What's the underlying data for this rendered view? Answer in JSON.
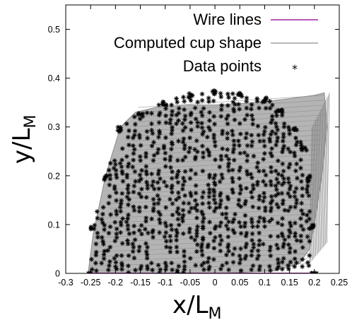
{
  "chart_data": {
    "type": "scatter",
    "xlabel": "x/L",
    "xlabel_sub": "M",
    "ylabel": "y/L",
    "ylabel_sub": "M",
    "xlim": [
      -0.3,
      0.25
    ],
    "ylim": [
      0,
      0.55
    ],
    "xticks": [
      "-0.3",
      "-0.25",
      "-0.2",
      "-0.15",
      "-0.1",
      "-0.05",
      "0",
      "0.05",
      "0.1",
      "0.15",
      "0.2",
      "0.25"
    ],
    "xtick_values": [
      -0.3,
      -0.25,
      -0.2,
      -0.15,
      -0.1,
      -0.05,
      0,
      0.05,
      0.1,
      0.15,
      0.2,
      0.25
    ],
    "yticks": [
      "0",
      "0.1",
      "0.2",
      "0.3",
      "0.4",
      "0.5"
    ],
    "ytick_values": [
      0,
      0.1,
      0.2,
      0.3,
      0.4,
      0.5
    ],
    "grid": false,
    "legend_position": "top-right",
    "series": [
      {
        "name": "Wire lines",
        "kind": "line",
        "color": "#a020a0",
        "x": [
          -0.25,
          0.19
        ],
        "y": [
          0,
          0
        ]
      },
      {
        "name": "Computed cup shape",
        "kind": "surface",
        "color": "#a0a0a0",
        "outline_x": [
          -0.255,
          -0.245,
          -0.22,
          -0.19,
          -0.16,
          -0.12,
          -0.05,
          0.0,
          0.05,
          0.1,
          0.15,
          0.2,
          0.22,
          0.225,
          0.215,
          0.2,
          0.19,
          0.17,
          0.12,
          0.0,
          -0.12,
          -0.2,
          -0.255
        ],
        "outline_y": [
          0.0,
          0.08,
          0.2,
          0.3,
          0.33,
          0.34,
          0.345,
          0.345,
          0.348,
          0.352,
          0.358,
          0.365,
          0.37,
          0.3,
          0.2,
          0.1,
          0.05,
          0.02,
          0.005,
          0.0,
          0.0,
          0.0,
          0.0
        ]
      },
      {
        "name": "Data points",
        "kind": "scatter",
        "color": "#000000",
        "marker": "*",
        "x_range": [
          -0.25,
          0.2
        ],
        "y_range": [
          0,
          0.38
        ],
        "cloud_outline_x": [
          -0.25,
          -0.245,
          -0.22,
          -0.19,
          -0.15,
          -0.1,
          -0.05,
          0.0,
          0.05,
          0.1,
          0.13,
          0.16,
          0.18,
          0.19,
          0.195,
          0.2,
          0.19,
          0.1,
          0.0,
          -0.1,
          -0.2,
          -0.25
        ],
        "cloud_outline_y": [
          0.0,
          0.1,
          0.2,
          0.3,
          0.33,
          0.355,
          0.37,
          0.375,
          0.37,
          0.36,
          0.34,
          0.3,
          0.26,
          0.2,
          0.1,
          0.0,
          0.0,
          0.0,
          0.0,
          0.0,
          0.0,
          0.0
        ]
      }
    ]
  }
}
